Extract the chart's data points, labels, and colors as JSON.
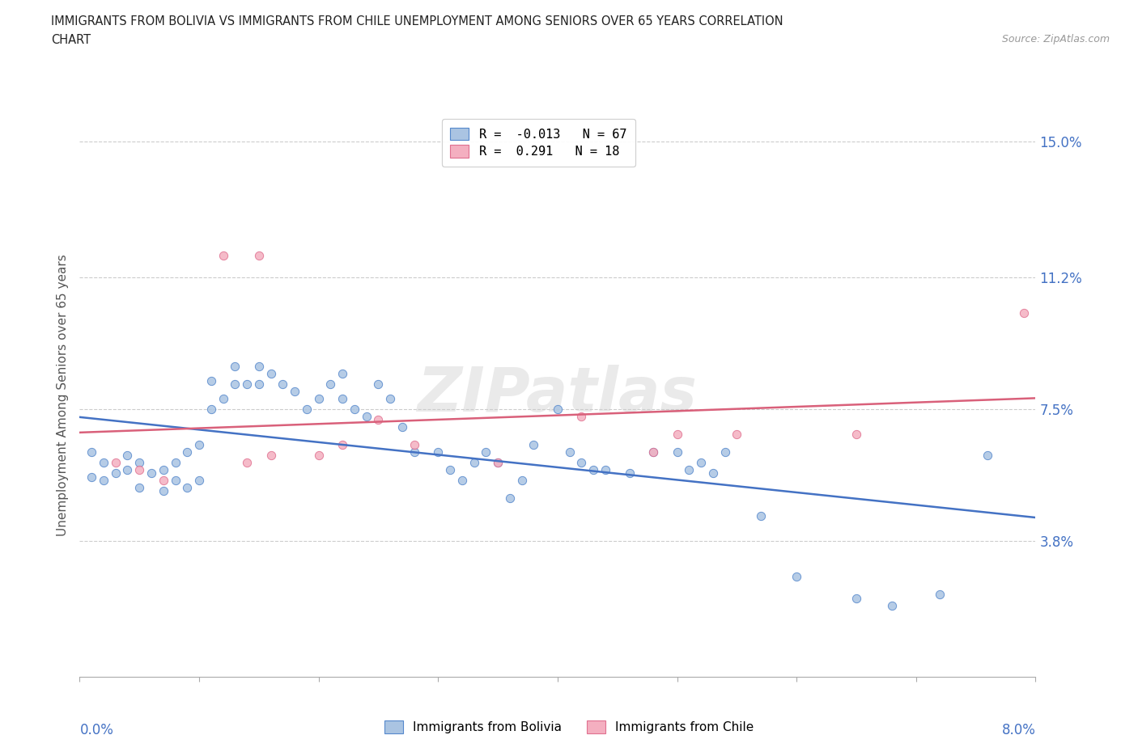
{
  "title_line1": "IMMIGRANTS FROM BOLIVIA VS IMMIGRANTS FROM CHILE UNEMPLOYMENT AMONG SENIORS OVER 65 YEARS CORRELATION",
  "title_line2": "CHART",
  "source": "Source: ZipAtlas.com",
  "ylabel": "Unemployment Among Seniors over 65 years",
  "ytick_vals": [
    0.0,
    0.038,
    0.075,
    0.112,
    0.15
  ],
  "ytick_labels": [
    "",
    "3.8%",
    "7.5%",
    "11.2%",
    "15.0%"
  ],
  "xlim": [
    0.0,
    0.08
  ],
  "ylim": [
    0.0,
    0.158
  ],
  "bolivia_R": -0.013,
  "bolivia_N": 67,
  "chile_R": 0.291,
  "chile_N": 18,
  "bolivia_color": "#aac4e2",
  "chile_color": "#f4afc0",
  "bolivia_edge_color": "#5588cc",
  "chile_edge_color": "#e07090",
  "bolivia_line_color": "#4472c4",
  "chile_line_color": "#d9607a",
  "bolivia_x": [
    0.001,
    0.001,
    0.002,
    0.002,
    0.003,
    0.004,
    0.004,
    0.005,
    0.005,
    0.006,
    0.007,
    0.007,
    0.008,
    0.008,
    0.009,
    0.009,
    0.01,
    0.01,
    0.011,
    0.011,
    0.012,
    0.013,
    0.013,
    0.014,
    0.015,
    0.015,
    0.016,
    0.017,
    0.018,
    0.019,
    0.02,
    0.021,
    0.022,
    0.022,
    0.023,
    0.024,
    0.025,
    0.026,
    0.027,
    0.028,
    0.03,
    0.031,
    0.032,
    0.033,
    0.034,
    0.035,
    0.036,
    0.037,
    0.038,
    0.04,
    0.041,
    0.042,
    0.043,
    0.044,
    0.046,
    0.048,
    0.05,
    0.051,
    0.052,
    0.053,
    0.054,
    0.057,
    0.06,
    0.065,
    0.068,
    0.072,
    0.076
  ],
  "bolivia_y": [
    0.056,
    0.063,
    0.055,
    0.06,
    0.057,
    0.058,
    0.062,
    0.053,
    0.06,
    0.057,
    0.052,
    0.058,
    0.055,
    0.06,
    0.053,
    0.063,
    0.055,
    0.065,
    0.083,
    0.075,
    0.078,
    0.082,
    0.087,
    0.082,
    0.082,
    0.087,
    0.085,
    0.082,
    0.08,
    0.075,
    0.078,
    0.082,
    0.078,
    0.085,
    0.075,
    0.073,
    0.082,
    0.078,
    0.07,
    0.063,
    0.063,
    0.058,
    0.055,
    0.06,
    0.063,
    0.06,
    0.05,
    0.055,
    0.065,
    0.075,
    0.063,
    0.06,
    0.058,
    0.058,
    0.057,
    0.063,
    0.063,
    0.058,
    0.06,
    0.057,
    0.063,
    0.045,
    0.028,
    0.022,
    0.02,
    0.023,
    0.062
  ],
  "chile_x": [
    0.003,
    0.005,
    0.007,
    0.012,
    0.014,
    0.015,
    0.016,
    0.02,
    0.022,
    0.025,
    0.028,
    0.035,
    0.042,
    0.048,
    0.05,
    0.055,
    0.065,
    0.079
  ],
  "chile_y": [
    0.06,
    0.058,
    0.055,
    0.118,
    0.06,
    0.118,
    0.062,
    0.062,
    0.065,
    0.072,
    0.065,
    0.06,
    0.073,
    0.063,
    0.068,
    0.068,
    0.068,
    0.102
  ],
  "watermark": "ZIPatlas"
}
